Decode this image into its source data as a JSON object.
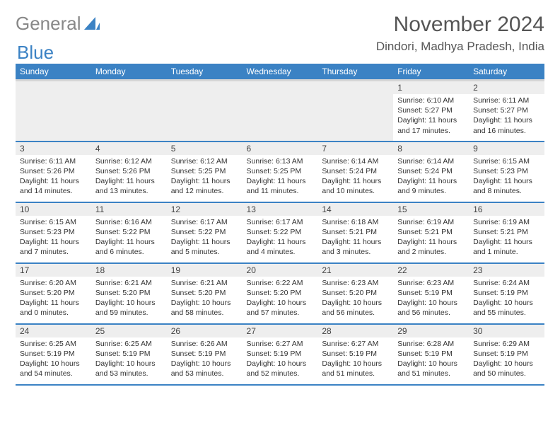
{
  "logo": {
    "text1": "General",
    "text2": "Blue"
  },
  "title": "November 2024",
  "location": "Dindori, Madhya Pradesh, India",
  "colors": {
    "header_bg": "#3b82c4",
    "header_text": "#ffffff",
    "grid_line": "#3b82c4",
    "daynum_bg": "#eeeeee",
    "logo_gray": "#888888",
    "logo_blue": "#3b82c4",
    "body_text": "#333333",
    "title_text": "#555555"
  },
  "typography": {
    "title_fontsize": 30,
    "location_fontsize": 17,
    "header_fontsize": 12,
    "daynum_fontsize": 12,
    "body_fontsize": 10.5
  },
  "days_of_week": [
    "Sunday",
    "Monday",
    "Tuesday",
    "Wednesday",
    "Thursday",
    "Friday",
    "Saturday"
  ],
  "weeks": [
    [
      null,
      null,
      null,
      null,
      null,
      {
        "n": "1",
        "sunrise": "6:10 AM",
        "sunset": "5:27 PM",
        "dl": "11 hours and 17 minutes."
      },
      {
        "n": "2",
        "sunrise": "6:11 AM",
        "sunset": "5:27 PM",
        "dl": "11 hours and 16 minutes."
      }
    ],
    [
      {
        "n": "3",
        "sunrise": "6:11 AM",
        "sunset": "5:26 PM",
        "dl": "11 hours and 14 minutes."
      },
      {
        "n": "4",
        "sunrise": "6:12 AM",
        "sunset": "5:26 PM",
        "dl": "11 hours and 13 minutes."
      },
      {
        "n": "5",
        "sunrise": "6:12 AM",
        "sunset": "5:25 PM",
        "dl": "11 hours and 12 minutes."
      },
      {
        "n": "6",
        "sunrise": "6:13 AM",
        "sunset": "5:25 PM",
        "dl": "11 hours and 11 minutes."
      },
      {
        "n": "7",
        "sunrise": "6:14 AM",
        "sunset": "5:24 PM",
        "dl": "11 hours and 10 minutes."
      },
      {
        "n": "8",
        "sunrise": "6:14 AM",
        "sunset": "5:24 PM",
        "dl": "11 hours and 9 minutes."
      },
      {
        "n": "9",
        "sunrise": "6:15 AM",
        "sunset": "5:23 PM",
        "dl": "11 hours and 8 minutes."
      }
    ],
    [
      {
        "n": "10",
        "sunrise": "6:15 AM",
        "sunset": "5:23 PM",
        "dl": "11 hours and 7 minutes."
      },
      {
        "n": "11",
        "sunrise": "6:16 AM",
        "sunset": "5:22 PM",
        "dl": "11 hours and 6 minutes."
      },
      {
        "n": "12",
        "sunrise": "6:17 AM",
        "sunset": "5:22 PM",
        "dl": "11 hours and 5 minutes."
      },
      {
        "n": "13",
        "sunrise": "6:17 AM",
        "sunset": "5:22 PM",
        "dl": "11 hours and 4 minutes."
      },
      {
        "n": "14",
        "sunrise": "6:18 AM",
        "sunset": "5:21 PM",
        "dl": "11 hours and 3 minutes."
      },
      {
        "n": "15",
        "sunrise": "6:19 AM",
        "sunset": "5:21 PM",
        "dl": "11 hours and 2 minutes."
      },
      {
        "n": "16",
        "sunrise": "6:19 AM",
        "sunset": "5:21 PM",
        "dl": "11 hours and 1 minute."
      }
    ],
    [
      {
        "n": "17",
        "sunrise": "6:20 AM",
        "sunset": "5:20 PM",
        "dl": "11 hours and 0 minutes."
      },
      {
        "n": "18",
        "sunrise": "6:21 AM",
        "sunset": "5:20 PM",
        "dl": "10 hours and 59 minutes."
      },
      {
        "n": "19",
        "sunrise": "6:21 AM",
        "sunset": "5:20 PM",
        "dl": "10 hours and 58 minutes."
      },
      {
        "n": "20",
        "sunrise": "6:22 AM",
        "sunset": "5:20 PM",
        "dl": "10 hours and 57 minutes."
      },
      {
        "n": "21",
        "sunrise": "6:23 AM",
        "sunset": "5:20 PM",
        "dl": "10 hours and 56 minutes."
      },
      {
        "n": "22",
        "sunrise": "6:23 AM",
        "sunset": "5:19 PM",
        "dl": "10 hours and 56 minutes."
      },
      {
        "n": "23",
        "sunrise": "6:24 AM",
        "sunset": "5:19 PM",
        "dl": "10 hours and 55 minutes."
      }
    ],
    [
      {
        "n": "24",
        "sunrise": "6:25 AM",
        "sunset": "5:19 PM",
        "dl": "10 hours and 54 minutes."
      },
      {
        "n": "25",
        "sunrise": "6:25 AM",
        "sunset": "5:19 PM",
        "dl": "10 hours and 53 minutes."
      },
      {
        "n": "26",
        "sunrise": "6:26 AM",
        "sunset": "5:19 PM",
        "dl": "10 hours and 53 minutes."
      },
      {
        "n": "27",
        "sunrise": "6:27 AM",
        "sunset": "5:19 PM",
        "dl": "10 hours and 52 minutes."
      },
      {
        "n": "28",
        "sunrise": "6:27 AM",
        "sunset": "5:19 PM",
        "dl": "10 hours and 51 minutes."
      },
      {
        "n": "29",
        "sunrise": "6:28 AM",
        "sunset": "5:19 PM",
        "dl": "10 hours and 51 minutes."
      },
      {
        "n": "30",
        "sunrise": "6:29 AM",
        "sunset": "5:19 PM",
        "dl": "10 hours and 50 minutes."
      }
    ]
  ],
  "labels": {
    "sunrise": "Sunrise:",
    "sunset": "Sunset:",
    "daylight": "Daylight:"
  }
}
